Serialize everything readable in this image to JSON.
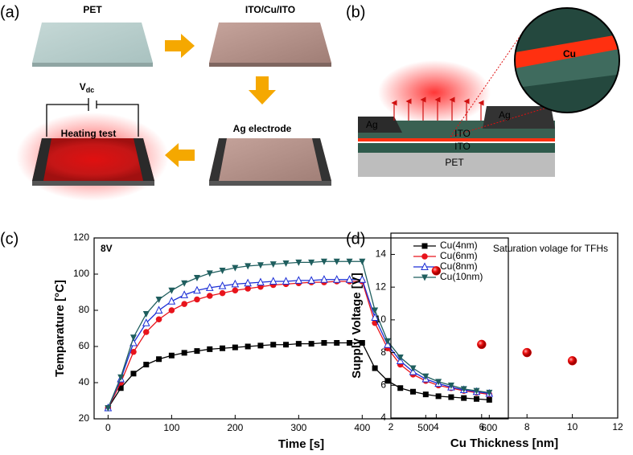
{
  "panel_labels": [
    "(a)",
    "(b)",
    "(c)",
    "(d)"
  ],
  "diagram_a": {
    "steps": [
      "PET",
      "ITO/Cu/ITO",
      "Ag electrode",
      "Heating test"
    ],
    "voltage": "V",
    "voltage_sub": "dc"
  },
  "diagram_b": {
    "zoom_label": "Cu",
    "layers": [
      "Ag",
      "Ag",
      "ITO",
      "ITO",
      "PET"
    ]
  },
  "chart_data": [
    {
      "type": "line",
      "annotation": "8V",
      "x_label": "Time [s]",
      "y_label": "Temparature [°C]",
      "x": [
        0,
        20,
        40,
        60,
        80,
        100,
        120,
        140,
        160,
        180,
        200,
        220,
        240,
        260,
        280,
        300,
        320,
        340,
        360,
        380,
        400,
        420,
        440,
        460,
        480,
        500,
        520,
        540,
        560,
        580,
        600
      ],
      "series": [
        {
          "name": "Cu(4nm)",
          "color": "#000000",
          "marker": "square",
          "values": [
            26,
            37,
            45,
            50,
            53,
            55,
            56.5,
            57.5,
            58.5,
            59,
            59.5,
            60,
            60.5,
            61,
            61,
            61.5,
            61.5,
            62,
            62,
            62,
            62,
            48,
            41,
            37,
            35,
            33.5,
            32.5,
            32,
            31.5,
            31,
            30.5
          ]
        },
        {
          "name": "Cu(6nm)",
          "color": "#e8141c",
          "marker": "circle",
          "values": [
            26,
            40,
            57,
            68,
            75,
            80,
            83.5,
            86,
            88,
            89.5,
            91,
            92,
            93,
            94,
            94.5,
            95,
            95.5,
            95.5,
            96,
            96,
            96,
            73,
            59,
            50,
            44.5,
            41,
            38.5,
            37,
            35.5,
            34.5,
            33.5
          ]
        },
        {
          "name": "Cu(8nm)",
          "color": "#1c2fd6",
          "marker": "triangle-open",
          "values": [
            26,
            42,
            62,
            73,
            80,
            85,
            88.5,
            91,
            92.5,
            93.5,
            94.5,
            95,
            95.5,
            96,
            96,
            96.5,
            96.5,
            97,
            97,
            97,
            97,
            76,
            61,
            52,
            46,
            42,
            39.5,
            37.5,
            36,
            35,
            34
          ]
        },
        {
          "name": "Cu(10nm)",
          "color": "#1f5e5e",
          "marker": "triangle-down",
          "values": [
            26,
            43,
            65,
            78,
            86,
            91,
            95,
            98,
            100.5,
            102,
            103.5,
            104.5,
            105,
            105.5,
            106,
            106.5,
            106.5,
            107,
            107,
            107,
            107,
            80,
            63,
            54,
            48,
            43.5,
            40.5,
            38.5,
            36.5,
            35.5,
            34.5
          ]
        }
      ],
      "xlim": [
        -22,
        630
      ],
      "xticks": [
        0,
        100,
        200,
        300,
        400,
        500,
        600
      ],
      "ylim": [
        20,
        120
      ],
      "yticks": [
        20,
        40,
        60,
        80,
        100,
        120
      ],
      "legend": "upper right"
    },
    {
      "type": "scatter",
      "annotation": "Saturation volage for TFHs",
      "x_label": "Cu Thickness [nm]",
      "y_label": "Supply Voltage [V]",
      "x": [
        4,
        6,
        8,
        10
      ],
      "values": [
        13,
        8.5,
        8,
        7.5
      ],
      "color": "#ee1111",
      "xlim": [
        2,
        12
      ],
      "xticks": [
        2,
        4,
        6,
        8,
        10,
        12
      ],
      "ylim": [
        4,
        15.3
      ],
      "yticks": [
        4,
        6,
        8,
        10,
        12,
        14
      ]
    }
  ]
}
